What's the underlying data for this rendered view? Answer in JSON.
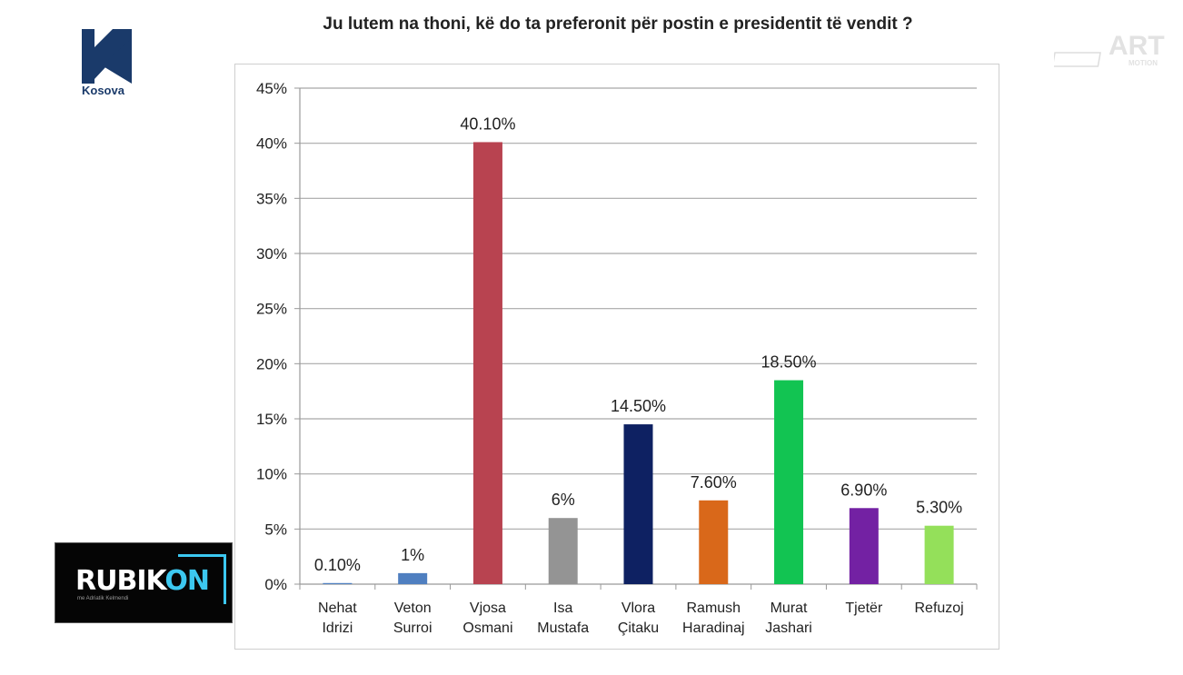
{
  "logos": {
    "left_caption": "Kosova",
    "rubikon_main": "RUBIK",
    "rubikon_accent": "ON",
    "rubikon_sub": "me Adriatik Kelmendi",
    "art_main": "ART",
    "art_sub": "MOTION"
  },
  "chart_data": {
    "type": "bar",
    "title": "Ju lutem na thoni, kë do ta preferonit për postin e presidentit të vendit ?",
    "categories": [
      [
        "Nehat",
        "Idrizi"
      ],
      [
        "Veton",
        "Surroi"
      ],
      [
        "Vjosa",
        "Osmani"
      ],
      [
        "Isa",
        "Mustafa"
      ],
      [
        "Vlora",
        "Çitaku"
      ],
      [
        "Ramush",
        "Haradinaj"
      ],
      [
        "Murat",
        "Jashari"
      ],
      [
        "Tjetër"
      ],
      [
        "Refuzoj"
      ]
    ],
    "values": [
      0.1,
      1,
      40.1,
      6,
      14.5,
      7.6,
      18.5,
      6.9,
      5.3
    ],
    "value_labels": [
      "0.10%",
      "1%",
      "40.10%",
      "6%",
      "14.50%",
      "7.60%",
      "18.50%",
      "6.90%",
      "5.30%"
    ],
    "colors": [
      "#4f7fc0",
      "#4f7fc0",
      "#b84350",
      "#949494",
      "#0e2162",
      "#d9681a",
      "#12c452",
      "#7321a3",
      "#94e05a"
    ],
    "ylim": [
      0,
      45
    ],
    "yticks": [
      0,
      5,
      10,
      15,
      20,
      25,
      30,
      35,
      40,
      45
    ],
    "ytick_labels": [
      "0%",
      "5%",
      "10%",
      "15%",
      "20%",
      "25%",
      "30%",
      "35%",
      "40%",
      "45%"
    ],
    "grid": true,
    "xlabel": "",
    "ylabel": ""
  }
}
